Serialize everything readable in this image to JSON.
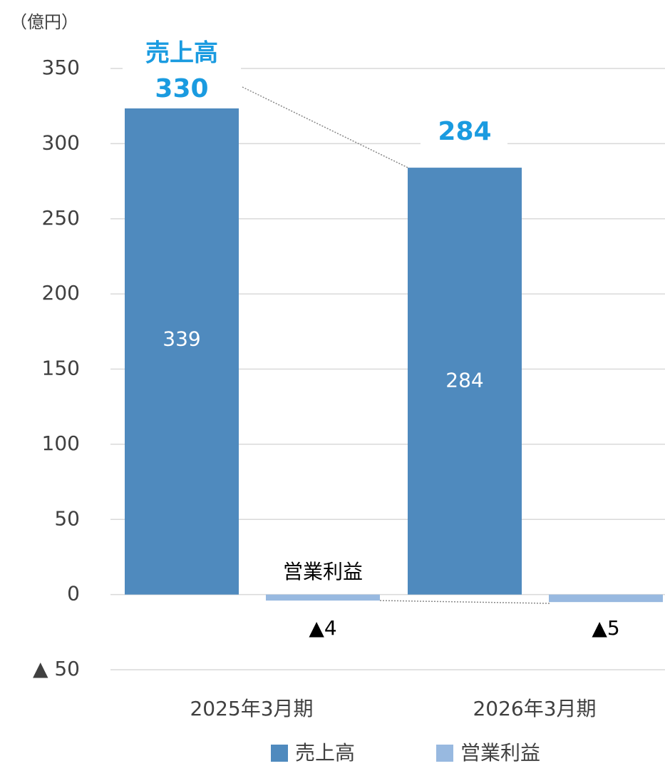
{
  "chart_data": {
    "type": "bar",
    "unit_label": "（億円）",
    "categories": [
      "2025年3月期",
      "2026年3月期"
    ],
    "series": [
      {
        "name": "売上高",
        "color": "#4f8abe",
        "values": [
          339,
          284
        ]
      },
      {
        "name": "営業利益",
        "color": "#98b9e0",
        "values": [
          -4,
          -5
        ],
        "value_labels": [
          "▲4",
          "▲5"
        ]
      }
    ],
    "annotations": [
      {
        "text": "売上高",
        "value": 330
      },
      {
        "value": 284
      }
    ],
    "annotation_color": "#1a9be0",
    "ylim": [
      -50,
      350
    ],
    "yticks": [
      {
        "value": -50,
        "label": "▲ 50"
      },
      0,
      50,
      100,
      150,
      200,
      250,
      300,
      350
    ],
    "grid": true,
    "legend": "bottom"
  }
}
